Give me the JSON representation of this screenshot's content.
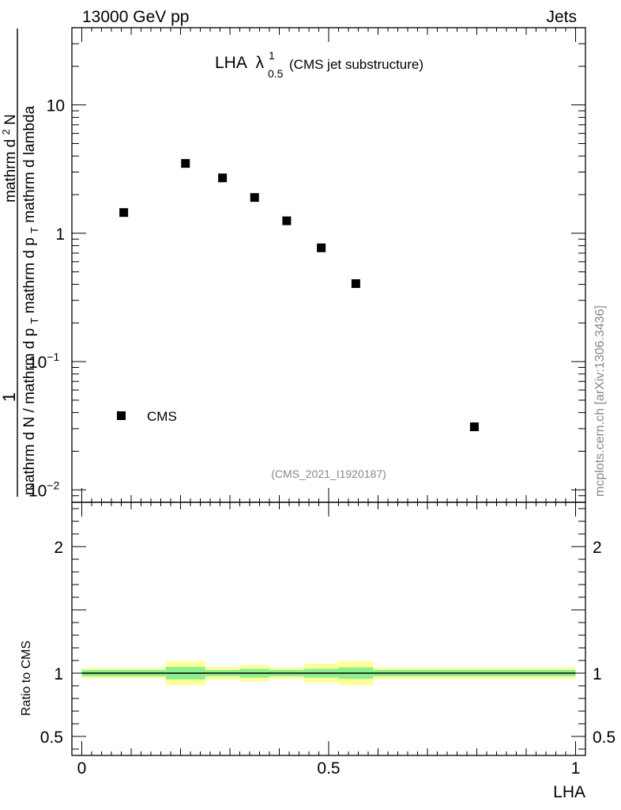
{
  "header": {
    "left": "13000 GeV pp",
    "right": "Jets"
  },
  "side_label": "mcplots.cern.ch [arXiv:1306.3436]",
  "chart_data": [
    {
      "type": "scatter",
      "title": "LHA",
      "title_symbol": "λ",
      "title_sup": "1",
      "title_sub": "0.5",
      "title_note": "(CMS jet substructure)",
      "watermark": "(CMS_2021_I1920187)",
      "ylabel_numerator": "1",
      "ylabel_denominator": "mathrm d N / mathrm d p",
      "ylabel_denominator_sub": "T",
      "ylabel_numerator_expr": "mathrm d",
      "ylabel_numerator_sup": "2",
      "ylabel_numerator_tail": "N",
      "ylabel_line2": "mathrm d p",
      "ylabel_line2_sub": "T",
      "ylabel_line2_tail": " mathrm d lambda",
      "yscale": "log",
      "ylim": [
        0.008,
        40
      ],
      "xlim": [
        -0.02,
        1.02
      ],
      "ytick_labels": [
        {
          "value": 10,
          "text": "10"
        },
        {
          "value": 1,
          "text": "1"
        },
        {
          "value": 0.1,
          "base": "10",
          "exp": "−1"
        },
        {
          "value": 0.01,
          "base": "10",
          "exp": "−2"
        }
      ],
      "legend_placement": "bottom-left",
      "series": [
        {
          "name": "CMS",
          "color": "#000000",
          "marker": "square",
          "points": [
            {
              "x": 0.085,
              "y": 1.45
            },
            {
              "x": 0.21,
              "y": 3.5
            },
            {
              "x": 0.285,
              "y": 2.7
            },
            {
              "x": 0.35,
              "y": 1.9
            },
            {
              "x": 0.415,
              "y": 1.25
            },
            {
              "x": 0.485,
              "y": 0.77
            },
            {
              "x": 0.555,
              "y": 0.405
            },
            {
              "x": 0.795,
              "y": 0.031
            }
          ]
        }
      ]
    },
    {
      "type": "area",
      "ylabel": "Ratio to CMS",
      "xlabel": "LHA",
      "ylim": [
        0.35,
        2.35
      ],
      "xlim": [
        -0.02,
        1.02
      ],
      "reference_line": 1,
      "ytick_labels": [
        {
          "value": 2,
          "text": "2"
        },
        {
          "value": 1,
          "text": "1"
        },
        {
          "value": 0.5,
          "text": "0.5"
        }
      ],
      "xtick_labels": [
        {
          "value": 0,
          "text": "0"
        },
        {
          "value": 0.5,
          "text": "0.5"
        },
        {
          "value": 1,
          "text": "1"
        }
      ],
      "colors": {
        "inner_band": "#8cf08c",
        "outer_band": "#ffff99",
        "line": "#000000"
      },
      "bands": [
        {
          "x0": 0.0,
          "x1": 0.17,
          "inner": [
            0.975,
            1.025
          ],
          "outer": [
            0.96,
            1.04
          ]
        },
        {
          "x0": 0.17,
          "x1": 0.25,
          "inner": [
            0.95,
            1.05
          ],
          "outer": [
            0.905,
            1.095
          ]
        },
        {
          "x0": 0.25,
          "x1": 0.32,
          "inner": [
            0.975,
            1.025
          ],
          "outer": [
            0.95,
            1.05
          ]
        },
        {
          "x0": 0.32,
          "x1": 0.38,
          "inner": [
            0.965,
            1.035
          ],
          "outer": [
            0.935,
            1.065
          ]
        },
        {
          "x0": 0.38,
          "x1": 0.45,
          "inner": [
            0.975,
            1.025
          ],
          "outer": [
            0.955,
            1.045
          ]
        },
        {
          "x0": 0.45,
          "x1": 0.52,
          "inner": [
            0.965,
            1.035
          ],
          "outer": [
            0.925,
            1.075
          ]
        },
        {
          "x0": 0.52,
          "x1": 0.59,
          "inner": [
            0.955,
            1.045
          ],
          "outer": [
            0.905,
            1.095
          ]
        },
        {
          "x0": 0.59,
          "x1": 1.0,
          "inner": [
            0.975,
            1.025
          ],
          "outer": [
            0.955,
            1.045
          ]
        }
      ]
    }
  ]
}
